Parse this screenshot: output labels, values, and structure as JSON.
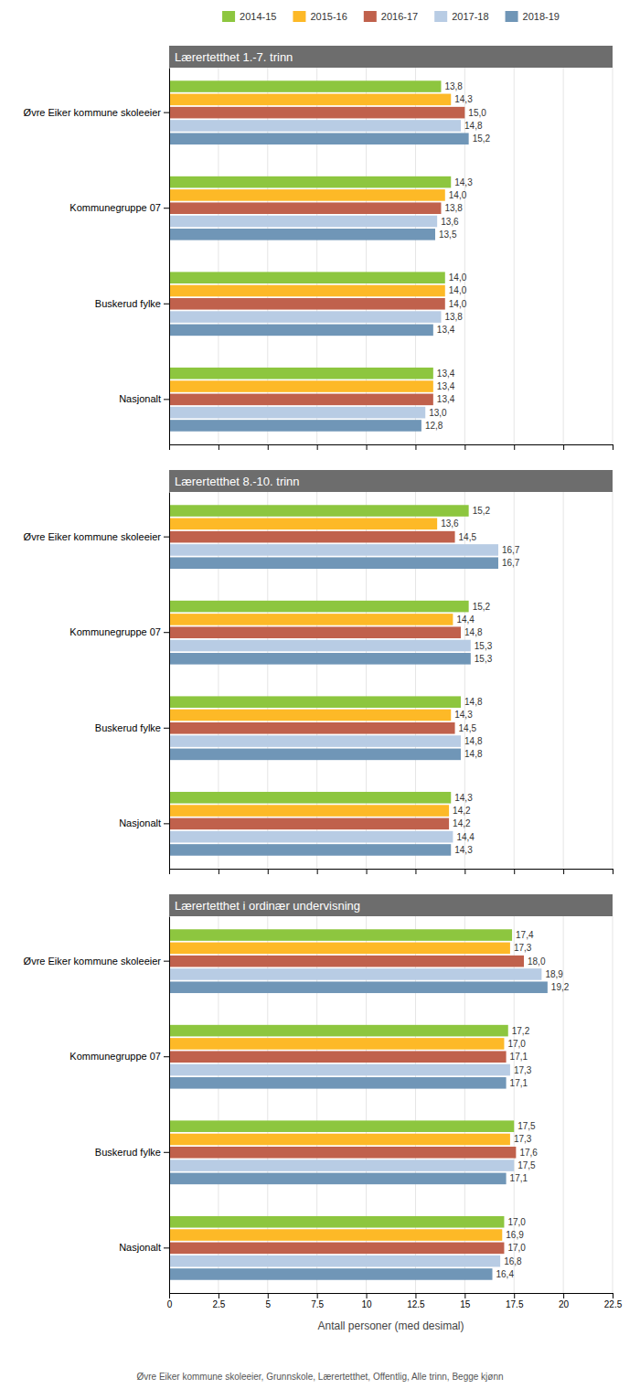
{
  "chart_data": [
    {
      "type": "bar",
      "orientation": "horizontal",
      "title": "Lærertetthet 1.-7. trinn",
      "categories": [
        "Øvre Eiker kommune skoleeier",
        "Kommunegruppe 07",
        "Buskerud fylke",
        "Nasjonalt"
      ],
      "series": [
        {
          "name": "2014-15",
          "color": "#8DC63F",
          "values": [
            13.8,
            14.3,
            14.0,
            13.4
          ],
          "value_labels": [
            "13,8",
            "14,3",
            "14,0",
            "13,4"
          ]
        },
        {
          "name": "2015-16",
          "color": "#FDB927",
          "values": [
            14.3,
            14.0,
            14.0,
            13.4
          ],
          "value_labels": [
            "14,3",
            "14,0",
            "14,0",
            "13,4"
          ]
        },
        {
          "name": "2016-17",
          "color": "#C0614C",
          "values": [
            15.0,
            13.8,
            14.0,
            13.4
          ],
          "value_labels": [
            "15,0",
            "13,8",
            "14,0",
            "13,4"
          ]
        },
        {
          "name": "2017-18",
          "color": "#B8CCE4",
          "values": [
            14.8,
            13.6,
            13.8,
            13.0
          ],
          "value_labels": [
            "14,8",
            "13,6",
            "13,8",
            "13,0"
          ]
        },
        {
          "name": "2018-19",
          "color": "#7096B7",
          "values": [
            15.2,
            13.5,
            13.4,
            12.8
          ],
          "value_labels": [
            "15,2",
            "13,5",
            "13,4",
            "12,8"
          ]
        }
      ],
      "xlim": [
        0,
        22.5
      ],
      "xticks": [
        0,
        2.5,
        5,
        7.5,
        10,
        12.5,
        15,
        17.5,
        20,
        22.5
      ],
      "grid": true,
      "data_labels": true,
      "tick_labels": "y",
      "legend": "top"
    },
    {
      "type": "bar",
      "orientation": "horizontal",
      "title": "Lærertetthet 8.-10. trinn",
      "categories": [
        "Øvre Eiker kommune skoleeier",
        "Kommunegruppe 07",
        "Buskerud fylke",
        "Nasjonalt"
      ],
      "series": [
        {
          "color": "#8DC63F",
          "values": [
            15.2,
            15.2,
            14.8,
            14.3
          ],
          "value_labels": [
            "15,2",
            "15,2",
            "14,8",
            "14,3"
          ]
        },
        {
          "color": "#FDB927",
          "values": [
            13.6,
            14.4,
            14.3,
            14.2
          ],
          "value_labels": [
            "13,6",
            "14,4",
            "14,3",
            "14,2"
          ]
        },
        {
          "color": "#C0614C",
          "values": [
            14.5,
            14.8,
            14.5,
            14.2
          ],
          "value_labels": [
            "14,5",
            "14,8",
            "14,5",
            "14,2"
          ]
        },
        {
          "color": "#B8CCE4",
          "values": [
            16.7,
            15.3,
            14.8,
            14.4
          ],
          "value_labels": [
            "16,7",
            "15,3",
            "14,8",
            "14,4"
          ]
        },
        {
          "color": "#7096B7",
          "values": [
            16.7,
            15.3,
            14.8,
            14.3
          ],
          "value_labels": [
            "16,7",
            "15,3",
            "14,8",
            "14,3"
          ]
        }
      ],
      "xlim": [
        0,
        22.5
      ],
      "xticks": [
        0,
        2.5,
        5,
        7.5,
        10,
        12.5,
        15,
        17.5,
        20,
        22.5
      ],
      "grid": true,
      "data_labels": true,
      "tick_labels": "y"
    },
    {
      "type": "bar",
      "orientation": "horizontal",
      "title": "Lærertetthet i ordinær undervisning",
      "categories": [
        "Øvre Eiker kommune skoleeier",
        "Kommunegruppe 07",
        "Buskerud fylke",
        "Nasjonalt"
      ],
      "series": [
        {
          "color": "#8DC63F",
          "values": [
            17.4,
            17.2,
            17.5,
            17.0
          ],
          "value_labels": [
            "17,4",
            "17,2",
            "17,5",
            "17,0"
          ]
        },
        {
          "color": "#FDB927",
          "values": [
            17.3,
            17.0,
            17.3,
            16.9
          ],
          "value_labels": [
            "17,3",
            "17,0",
            "17,3",
            "16,9"
          ]
        },
        {
          "color": "#C0614C",
          "values": [
            18.0,
            17.1,
            17.6,
            17.0
          ],
          "value_labels": [
            "18,0",
            "17,1",
            "17,6",
            "17,0"
          ]
        },
        {
          "color": "#B8CCE4",
          "values": [
            18.9,
            17.3,
            17.5,
            16.8
          ],
          "value_labels": [
            "18,9",
            "17,3",
            "17,5",
            "16,8"
          ]
        },
        {
          "color": "#7096B7",
          "values": [
            19.2,
            17.1,
            17.1,
            16.4
          ],
          "value_labels": [
            "19,2",
            "17,1",
            "17,1",
            "16,4"
          ]
        }
      ],
      "xlim": [
        0,
        22.5
      ],
      "xticks": [
        0,
        2.5,
        5,
        7.5,
        10,
        12.5,
        15,
        17.5,
        20,
        22.5
      ],
      "xlabel": "Antall personer (med desimal)",
      "annotations": [
        "Øvre Eiker kommune skoleeier, Grunnskole, Lærertetthet, Offentlig, Alle trinn, Begge kjønn"
      ],
      "grid": true,
      "data_labels": true
    }
  ]
}
